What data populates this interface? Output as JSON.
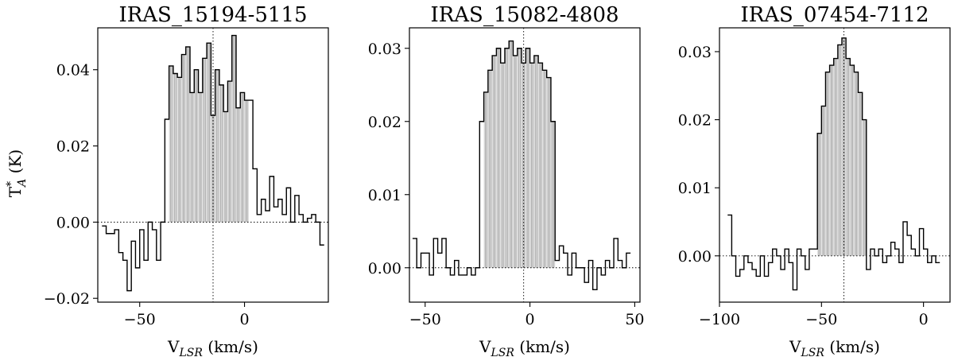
{
  "chart_data": [
    {
      "type": "line",
      "subtype": "step-spectrum",
      "title": "IRAS_15194-5115",
      "xlabel": "V_LSR (km/s)",
      "ylabel": "T*_A (K)",
      "xlim": [
        -70,
        40
      ],
      "ylim": [
        -0.021,
        0.051
      ],
      "xticks": [
        {
          "value": -50,
          "label": "−50"
        },
        {
          "value": 0,
          "label": "0"
        }
      ],
      "yticks": [
        {
          "value": -0.02,
          "label": "−0.02"
        },
        {
          "value": 0.0,
          "label": "0.00"
        },
        {
          "value": 0.02,
          "label": "0.02"
        },
        {
          "value": 0.04,
          "label": "0.04"
        }
      ],
      "v_center": -15,
      "zero_line": 0,
      "fill_range": [
        -37,
        2
      ],
      "x": [
        -67,
        -65,
        -63,
        -61,
        -59,
        -57,
        -55,
        -53,
        -51,
        -49,
        -47,
        -45,
        -43,
        -41,
        -39,
        -37,
        -35,
        -33,
        -31,
        -29,
        -27,
        -25,
        -23,
        -21,
        -19,
        -17,
        -15,
        -13,
        -11,
        -9,
        -7,
        -5,
        -3,
        -1,
        1,
        3,
        5,
        7,
        9,
        11,
        13,
        15,
        17,
        19,
        21,
        23,
        25,
        27,
        29,
        31,
        33,
        35,
        37
      ],
      "y": [
        -0.001,
        -0.003,
        -0.003,
        -0.002,
        -0.008,
        -0.01,
        -0.018,
        -0.005,
        -0.012,
        -0.002,
        -0.01,
        0.0,
        -0.002,
        -0.01,
        0.0,
        0.027,
        0.041,
        0.039,
        0.038,
        0.044,
        0.046,
        0.034,
        0.04,
        0.034,
        0.043,
        0.047,
        0.028,
        0.04,
        0.036,
        0.029,
        0.037,
        0.049,
        0.03,
        0.034,
        0.032,
        0.032,
        0.014,
        0.002,
        0.006,
        0.003,
        0.012,
        0.004,
        0.006,
        0.002,
        0.009,
        0.0,
        0.007,
        0.002,
        0.0,
        0.001,
        0.002,
        0.0,
        -0.006
      ]
    },
    {
      "type": "line",
      "subtype": "step-spectrum",
      "title": "IRAS_15082-4808",
      "xlabel": "V_LSR (km/s)",
      "ylabel": "",
      "xlim": [
        -57.5,
        52.5
      ],
      "ylim": [
        -0.0047,
        0.0328
      ],
      "xticks": [
        {
          "value": -50,
          "label": "−50"
        },
        {
          "value": 0,
          "label": "0"
        },
        {
          "value": 50,
          "label": "50"
        }
      ],
      "yticks": [
        {
          "value": 0.0,
          "label": "0.000"
        },
        {
          "value": 0.01,
          "label": "0.010"
        },
        {
          "value": 0.02,
          "label": "0.020"
        },
        {
          "value": 0.03,
          "label": "0.030"
        }
      ],
      "ytick_display": [
        "0.00",
        "0.01",
        "0.02",
        "0.03"
      ],
      "v_center": -3,
      "zero_line": 0,
      "fill_range": [
        -22,
        12
      ],
      "x": [
        -55,
        -53,
        -51,
        -49,
        -47,
        -45,
        -43,
        -41,
        -39,
        -37,
        -35,
        -33,
        -31,
        -29,
        -27,
        -25,
        -23,
        -21,
        -19,
        -17,
        -15,
        -13,
        -11,
        -9,
        -7,
        -5,
        -3,
        -1,
        1,
        3,
        5,
        7,
        9,
        11,
        13,
        15,
        17,
        19,
        21,
        23,
        25,
        27,
        29,
        31,
        33,
        35,
        37,
        39,
        41,
        43,
        45,
        47
      ],
      "y": [
        0.004,
        0.0,
        0.002,
        0.002,
        -0.001,
        0.004,
        0.002,
        0.004,
        0.0,
        -0.001,
        0.001,
        -0.001,
        -0.001,
        0.0,
        -0.001,
        0.0,
        0.02,
        0.024,
        0.027,
        0.029,
        0.03,
        0.028,
        0.03,
        0.031,
        0.029,
        0.03,
        0.028,
        0.03,
        0.028,
        0.029,
        0.028,
        0.027,
        0.026,
        0.02,
        0.001,
        0.003,
        0.002,
        -0.001,
        0.002,
        0.0,
        0.0,
        -0.002,
        0.001,
        -0.003,
        0.0,
        -0.001,
        0.001,
        0.0,
        0.004,
        0.001,
        0.0,
        0.002
      ]
    },
    {
      "type": "line",
      "subtype": "step-spectrum",
      "title": "IRAS_07454-7112",
      "xlabel": "V_LSR (km/s)",
      "ylabel": "",
      "xlim": [
        -100,
        13
      ],
      "ylim": [
        -0.0068,
        0.0335
      ],
      "xticks": [
        {
          "value": -100,
          "label": "−100"
        },
        {
          "value": -50,
          "label": "−50"
        },
        {
          "value": 0,
          "label": "0"
        }
      ],
      "yticks": [
        {
          "value": 0.0,
          "label": "0.00"
        },
        {
          "value": 0.01,
          "label": "0.01"
        },
        {
          "value": 0.02,
          "label": "0.02"
        },
        {
          "value": 0.03,
          "label": "0.03"
        }
      ],
      "v_center": -39,
      "zero_line": 0,
      "fill_range": [
        -52,
        -27
      ],
      "x": [
        -95,
        -93,
        -91,
        -89,
        -87,
        -85,
        -83,
        -81,
        -79,
        -77,
        -75,
        -73,
        -71,
        -69,
        -67,
        -65,
        -63,
        -61,
        -59,
        -57,
        -55,
        -53,
        -51,
        -49,
        -47,
        -45,
        -43,
        -41,
        -39,
        -37,
        -35,
        -33,
        -31,
        -29,
        -27,
        -25,
        -23,
        -21,
        -19,
        -17,
        -15,
        -13,
        -11,
        -9,
        -7,
        -5,
        -3,
        -1,
        1,
        3,
        5,
        7
      ],
      "y": [
        0.006,
        0.0,
        -0.003,
        -0.002,
        0.0,
        -0.001,
        -0.002,
        -0.003,
        0.0,
        -0.003,
        -0.001,
        0.001,
        0.0,
        -0.002,
        0.001,
        -0.001,
        -0.005,
        0.001,
        0.0,
        -0.002,
        0.001,
        0.001,
        0.018,
        0.022,
        0.027,
        0.028,
        0.029,
        0.031,
        0.032,
        0.029,
        0.028,
        0.027,
        0.024,
        0.02,
        -0.002,
        0.001,
        0.0,
        0.001,
        -0.001,
        0.0,
        0.002,
        0.001,
        -0.001,
        0.005,
        0.003,
        0.001,
        0.0,
        0.004,
        0.001,
        -0.001,
        0.0,
        -0.001
      ]
    }
  ]
}
